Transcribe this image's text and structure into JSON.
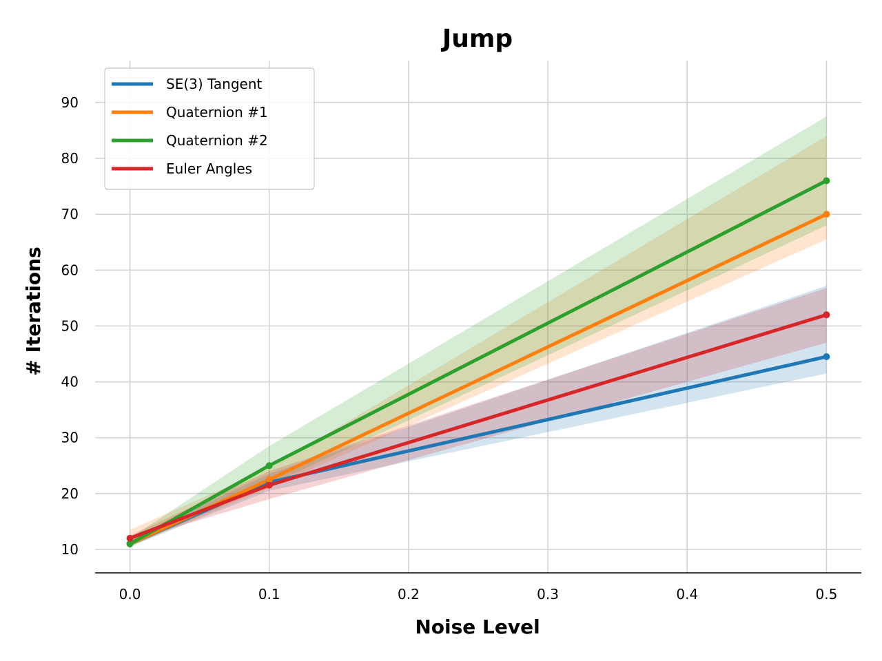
{
  "chart_data": {
    "type": "line",
    "title": "Jump",
    "xlabel": "Noise Level",
    "ylabel": "# Iterations",
    "x": [
      0.0,
      0.1,
      0.5
    ],
    "xlim": [
      -0.025,
      0.525
    ],
    "ylim": [
      5.8,
      97.5
    ],
    "xticks": [
      0.0,
      0.1,
      0.2,
      0.3,
      0.4,
      0.5
    ],
    "xtick_labels": [
      "0.0",
      "0.1",
      "0.2",
      "0.3",
      "0.4",
      "0.5"
    ],
    "yticks": [
      10,
      20,
      30,
      40,
      50,
      60,
      70,
      80,
      90
    ],
    "ytick_labels": [
      "10",
      "20",
      "30",
      "40",
      "50",
      "60",
      "70",
      "80",
      "90"
    ],
    "grid": true,
    "legend_position": "top-left",
    "series": [
      {
        "name": "SE(3) Tangent",
        "color": "#1f77b4",
        "values": [
          11.0,
          22.0,
          44.5
        ],
        "lower": [
          10.5,
          20.5,
          41.5
        ],
        "upper": [
          12.0,
          23.5,
          57.2
        ]
      },
      {
        "name": "Quaternion #1",
        "color": "#ff7f0e",
        "values": [
          11.0,
          22.5,
          70.0
        ],
        "lower": [
          10.5,
          21.0,
          65.5
        ],
        "upper": [
          13.5,
          24.5,
          84.0
        ]
      },
      {
        "name": "Quaternion #2",
        "color": "#2ca02c",
        "values": [
          11.0,
          25.0,
          76.0
        ],
        "lower": [
          10.5,
          21.5,
          68.0
        ],
        "upper": [
          12.0,
          28.5,
          87.5
        ]
      },
      {
        "name": "Euler Angles",
        "color": "#d62728",
        "values": [
          12.0,
          21.5,
          52.0
        ],
        "lower": [
          11.5,
          19.0,
          47.0
        ],
        "upper": [
          12.5,
          24.0,
          56.8
        ]
      }
    ]
  }
}
